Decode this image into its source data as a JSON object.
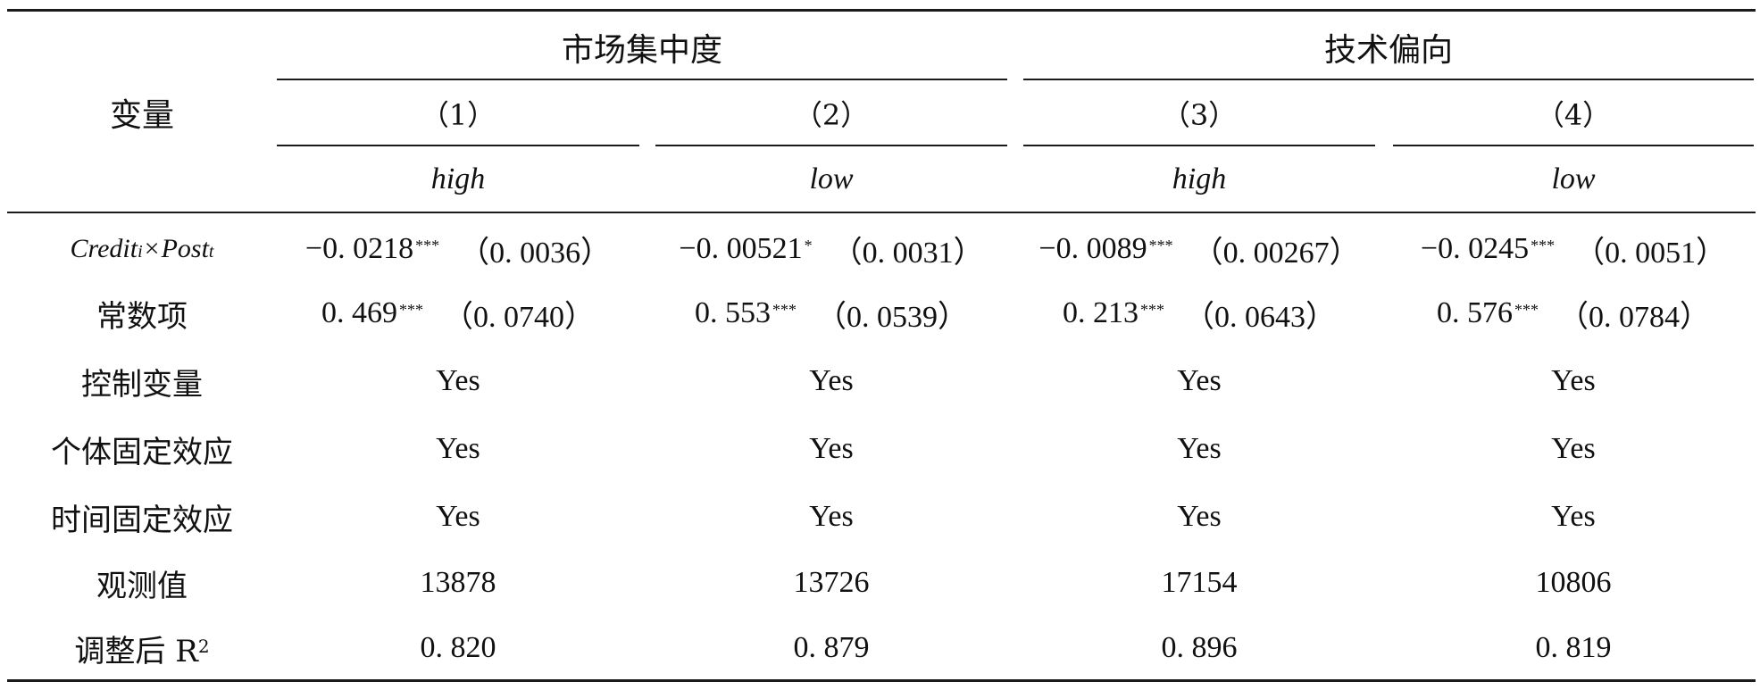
{
  "header": {
    "variable_label": "变量",
    "groups": [
      {
        "label": "市场集中度"
      },
      {
        "label": "技术偏向"
      }
    ],
    "columns": [
      {
        "number": "（1）",
        "subgroup": "high"
      },
      {
        "number": "（2）",
        "subgroup": "low"
      },
      {
        "number": "（3）",
        "subgroup": "high"
      },
      {
        "number": "（4）",
        "subgroup": "low"
      }
    ]
  },
  "rows": {
    "interaction": {
      "label_a": "Credit",
      "label_a_sub": "i",
      "label_times": "×",
      "label_b": "Post",
      "label_b_sub": "t",
      "cells": [
        {
          "estimate": "−0. 0218",
          "stars": "***",
          "se": "（0. 0036）"
        },
        {
          "estimate": "−0. 00521",
          "stars": "*",
          "se": "（0. 0031）"
        },
        {
          "estimate": "−0. 0089",
          "stars": "***",
          "se": "（0. 00267）"
        },
        {
          "estimate": "−0. 0245",
          "stars": "***",
          "se": "（0. 0051）"
        }
      ]
    },
    "constant": {
      "label": "常数项",
      "cells": [
        {
          "estimate": "0. 469",
          "stars": "***",
          "se": "（0. 0740）"
        },
        {
          "estimate": "0. 553",
          "stars": "***",
          "se": "（0. 0539）"
        },
        {
          "estimate": "0. 213",
          "stars": "***",
          "se": "（0. 0643）"
        },
        {
          "estimate": "0. 576",
          "stars": "***",
          "se": "（0. 0784）"
        }
      ]
    },
    "controls": {
      "label": "控制变量",
      "values": [
        "Yes",
        "Yes",
        "Yes",
        "Yes"
      ]
    },
    "individual_fe": {
      "label": "个体固定效应",
      "values": [
        "Yes",
        "Yes",
        "Yes",
        "Yes"
      ]
    },
    "time_fe": {
      "label": "时间固定效应",
      "values": [
        "Yes",
        "Yes",
        "Yes",
        "Yes"
      ]
    },
    "observations": {
      "label": "观测值",
      "values": [
        "13878",
        "13726",
        "17154",
        "10806"
      ]
    },
    "adj_r2": {
      "label": "调整后 R",
      "label_sup": "2",
      "values": [
        "0. 820",
        "0. 879",
        "0. 896",
        "0. 819"
      ]
    }
  }
}
